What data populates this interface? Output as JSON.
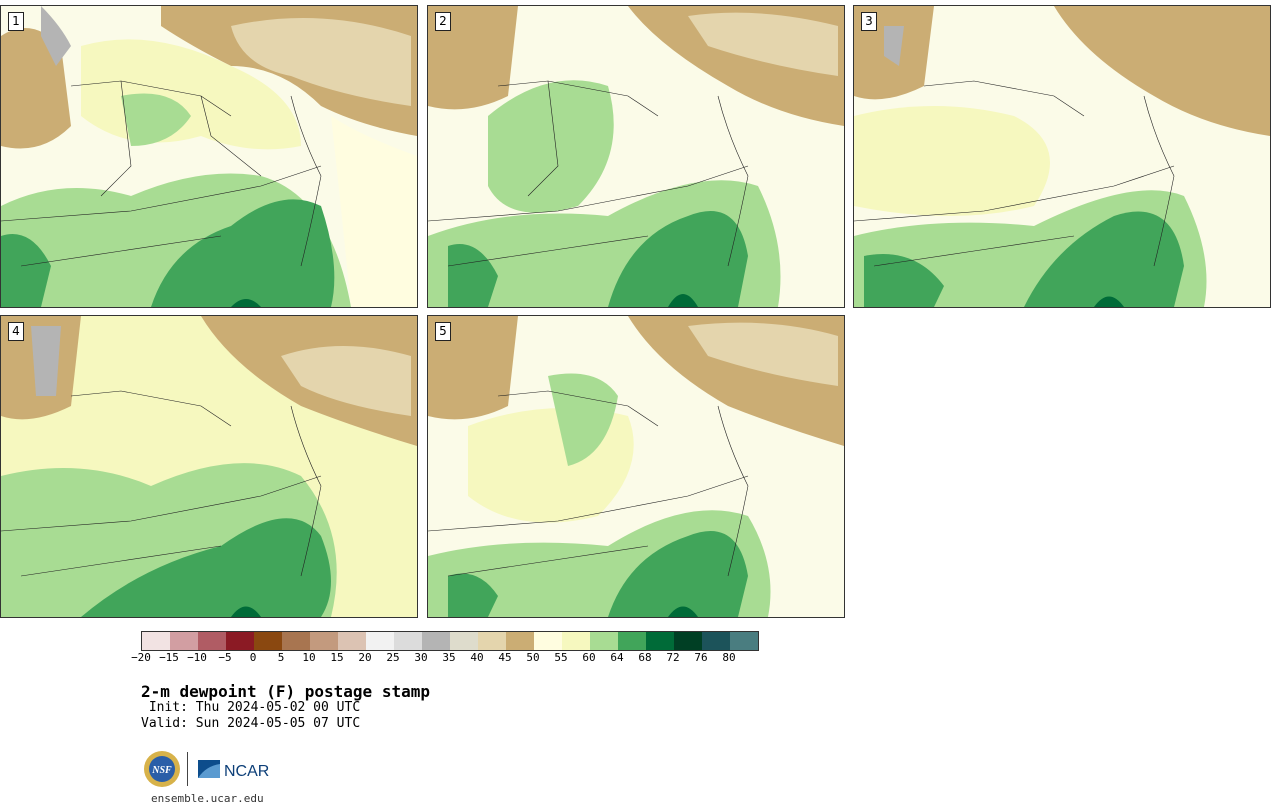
{
  "panels": [
    {
      "label": "1"
    },
    {
      "label": "2"
    },
    {
      "label": "3"
    },
    {
      "label": "4"
    },
    {
      "label": "5"
    }
  ],
  "colorbar": {
    "ticks": [
      "-20",
      "-15",
      "-10",
      "-5",
      "0",
      "5",
      "10",
      "15",
      "20",
      "25",
      "30",
      "35",
      "40",
      "45",
      "50",
      "55",
      "60",
      "64",
      "68",
      "72",
      "76",
      "80"
    ],
    "colors": [
      "#f2e3e3",
      "#d29ea2",
      "#b05c64",
      "#8b1a24",
      "#8a4810",
      "#a87550",
      "#c39a7e",
      "#dcc3b3",
      "#f2f2f2",
      "#dcdcdc",
      "#b4b4b4",
      "#dedccc",
      "#e4d5ad",
      "#cbad74",
      "#fffde0",
      "#f6f8bf",
      "#a8dc93",
      "#41a55a",
      "#006b38",
      "#003f24",
      "#1c535a",
      "#4a7d80"
    ]
  },
  "header": {
    "title": "2-m dewpoint (F) postage stamp",
    "init": " Init: Thu 2024-05-02 00 UTC",
    "valid": "Valid: Sun 2024-05-05 07 UTC"
  },
  "logos": {
    "nsf": "NSF",
    "ncar": "NCAR"
  },
  "footer": {
    "site": "ensemble.ucar.edu"
  }
}
